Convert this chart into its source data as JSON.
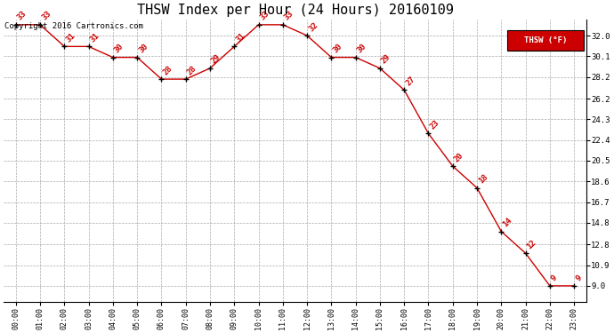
{
  "title": "THSW Index per Hour (24 Hours) 20160109",
  "copyright": "Copyright 2016 Cartronics.com",
  "legend_label": "THSW (°F)",
  "hours": [
    0,
    1,
    2,
    3,
    4,
    5,
    6,
    7,
    8,
    9,
    10,
    11,
    12,
    13,
    14,
    15,
    16,
    17,
    18,
    19,
    20,
    21,
    22,
    23
  ],
  "values": [
    33,
    33,
    31,
    31,
    30,
    30,
    28,
    28,
    29,
    31,
    33,
    33,
    32,
    30,
    30,
    29,
    27,
    23,
    20,
    18,
    14,
    12,
    9,
    9
  ],
  "yticks": [
    9.0,
    10.9,
    12.8,
    14.8,
    16.7,
    18.6,
    20.5,
    22.4,
    24.3,
    26.2,
    28.2,
    30.1,
    32.0
  ],
  "ylim": [
    7.5,
    33.5
  ],
  "xlim": [
    -0.5,
    23.5
  ],
  "line_color": "#cc0000",
  "marker_color": "#000000",
  "label_color": "#cc0000",
  "background_color": "#ffffff",
  "grid_color": "#aaaaaa",
  "title_fontsize": 11,
  "copyright_fontsize": 6.5,
  "legend_bg": "#cc0000",
  "legend_text_color": "#ffffff"
}
